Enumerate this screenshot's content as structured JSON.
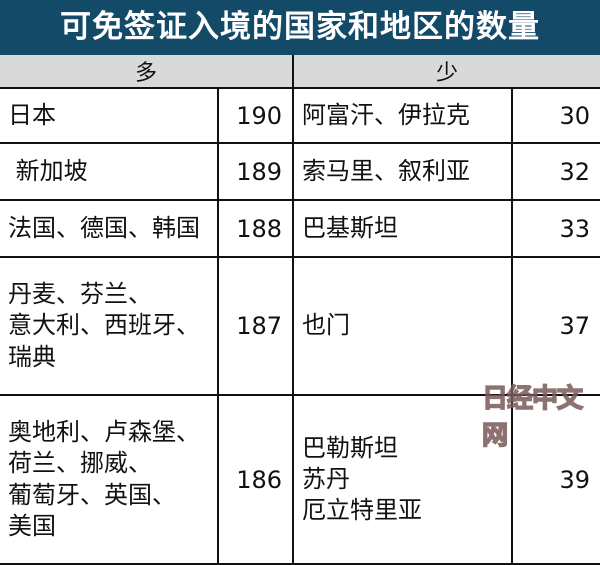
{
  "title": "可免签证入境的国家和地区的数量",
  "headers": {
    "more": "多",
    "less": "少"
  },
  "rows": [
    {
      "more_lines": [
        "日本"
      ],
      "more_count": "190",
      "less_lines": [
        "阿富汗、伊拉克"
      ],
      "less_count": "30"
    },
    {
      "more_lines": [
        " 新加坡"
      ],
      "more_count": "189",
      "less_lines": [
        "索马里、叙利亚"
      ],
      "less_count": "32"
    },
    {
      "more_lines": [
        "法国、德国、韩国"
      ],
      "more_count": "188",
      "less_lines": [
        "巴基斯坦"
      ],
      "less_count": "33"
    },
    {
      "more_lines": [
        "丹麦、芬兰、",
        "意大利、西班牙、",
        "瑞典"
      ],
      "more_count": "187",
      "less_lines": [
        "也门"
      ],
      "less_count": "37"
    },
    {
      "more_lines": [
        "奥地利、卢森堡、",
        "荷兰、挪威、",
        "葡萄牙、英国、",
        "美国"
      ],
      "more_count": "186",
      "less_lines": [
        "巴勒斯坦",
        "苏丹",
        "厄立特里亚"
      ],
      "less_count": "39"
    }
  ],
  "watermark": "日经中文网",
  "colors": {
    "title_bg": "#134a68",
    "header_bg": "#d9d9d9"
  }
}
